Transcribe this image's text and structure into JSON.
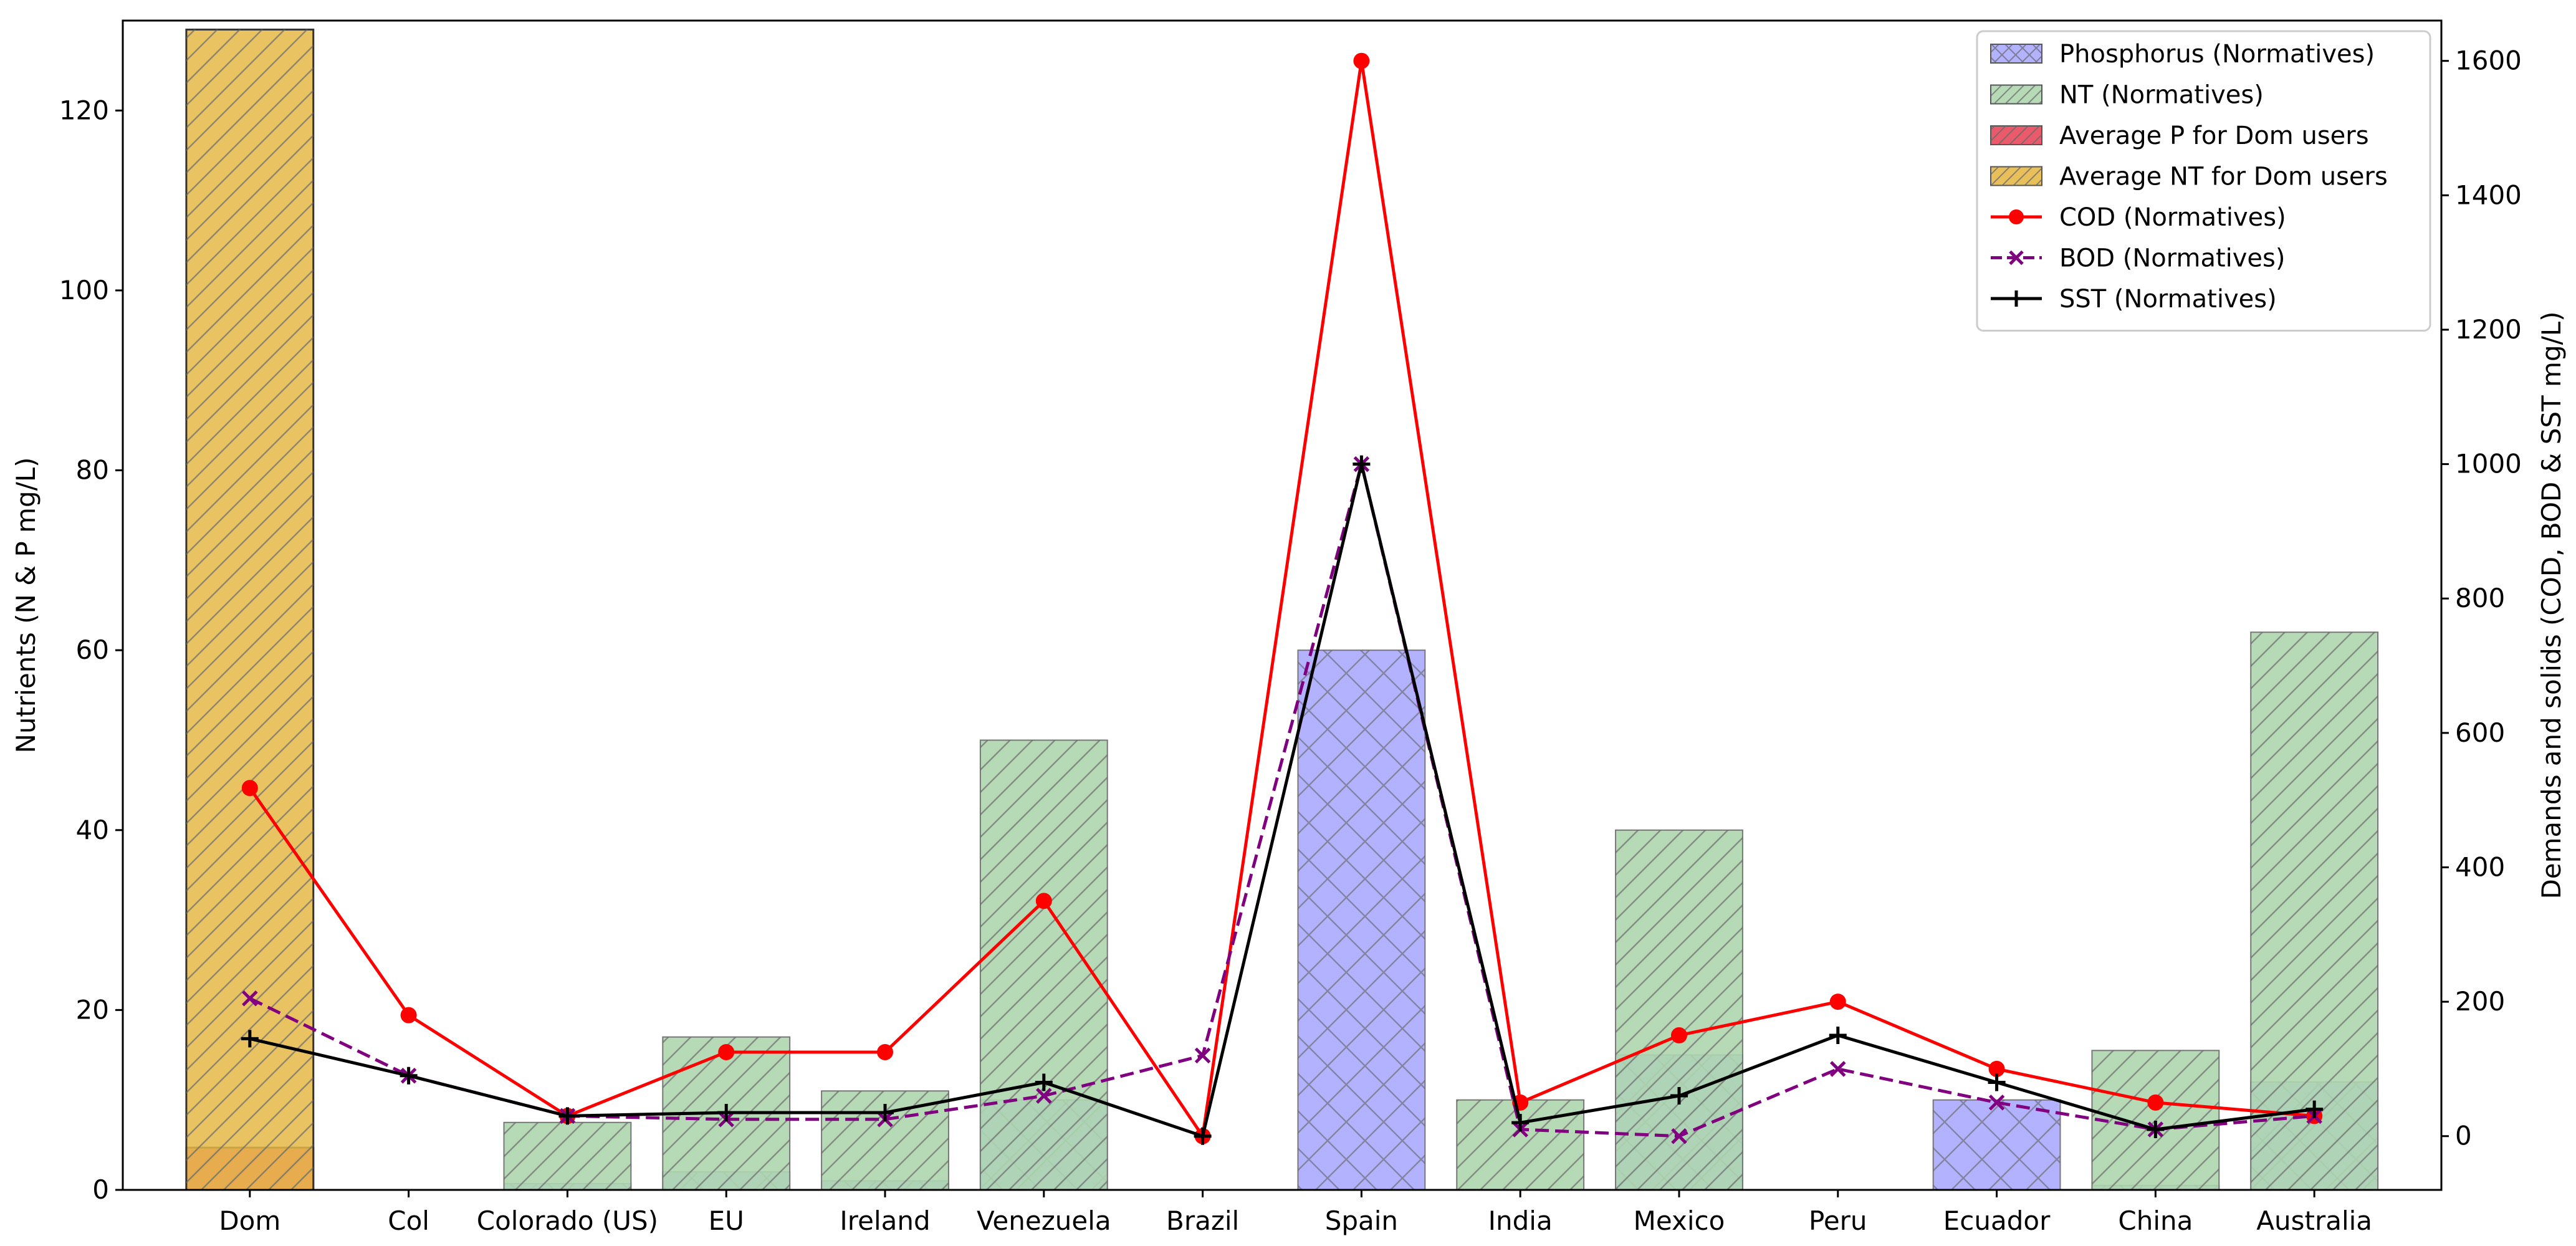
{
  "chart_data": {
    "type": "bar",
    "categories": [
      "Dom",
      "Col",
      "Colorado (US)",
      "EU",
      "Ireland",
      "Venezuela",
      "Brazil",
      "Spain",
      "India",
      "Mexico",
      "Peru",
      "Ecuador",
      "China",
      "Australia"
    ],
    "ylabel": "Nutrients (N & P mg/L)",
    "y2label": "Demands and solids (COD, BOD & SST mg/L)",
    "ylim": [
      0,
      130
    ],
    "y2lim": [
      -80,
      1660
    ],
    "yticks": [
      0,
      20,
      40,
      60,
      80,
      100,
      120
    ],
    "y2ticks": [
      0,
      200,
      400,
      600,
      800,
      1000,
      1200,
      1400,
      1600
    ],
    "legend_position": "upper-right",
    "series": [
      {
        "name": "Phosphorus (Normatives)",
        "kind": "bar",
        "axis": "left",
        "color": "#aaaaff",
        "hatch": "x",
        "values": [
          0,
          0,
          0.7,
          2,
          1,
          10,
          0,
          60,
          0,
          15,
          0,
          10,
          0.5,
          12
        ]
      },
      {
        "name": "NT (Normatives)",
        "kind": "bar",
        "axis": "left",
        "color": "#aed6ae",
        "hatch": "/",
        "values": [
          0,
          0,
          7.5,
          17,
          11,
          50,
          0,
          0,
          10,
          40,
          0,
          0,
          15.5,
          62
        ]
      },
      {
        "name": "Average P for Dom users",
        "kind": "bar",
        "axis": "left",
        "color": "#e8485a",
        "hatch": "/",
        "values": [
          4.7,
          null,
          null,
          null,
          null,
          null,
          null,
          null,
          null,
          null,
          null,
          null,
          null,
          null
        ]
      },
      {
        "name": "Average NT for Dom users",
        "kind": "bar",
        "axis": "left",
        "color": "#e5b846",
        "hatch": "/",
        "values": [
          129,
          null,
          null,
          null,
          null,
          null,
          null,
          null,
          null,
          null,
          null,
          null,
          null,
          null
        ]
      },
      {
        "name": "COD (Normatives)",
        "kind": "line",
        "axis": "right",
        "color": "#ff0000",
        "marker": "o",
        "values": [
          518,
          180,
          30,
          125,
          125,
          350,
          0,
          1600,
          50,
          150,
          200,
          100,
          50,
          30
        ]
      },
      {
        "name": "BOD (Normatives)",
        "kind": "line",
        "axis": "right",
        "color": "#800080",
        "marker": "x",
        "dashed": true,
        "values": [
          205,
          90,
          30,
          25,
          25,
          60,
          120,
          1000,
          10,
          0,
          100,
          50,
          10,
          30
        ]
      },
      {
        "name": "SST (Normatives)",
        "kind": "line",
        "axis": "right",
        "color": "#000000",
        "marker": "+",
        "values": [
          145,
          90,
          30,
          35,
          35,
          80,
          0,
          1000,
          20,
          60,
          150,
          80,
          10,
          40
        ]
      }
    ]
  }
}
